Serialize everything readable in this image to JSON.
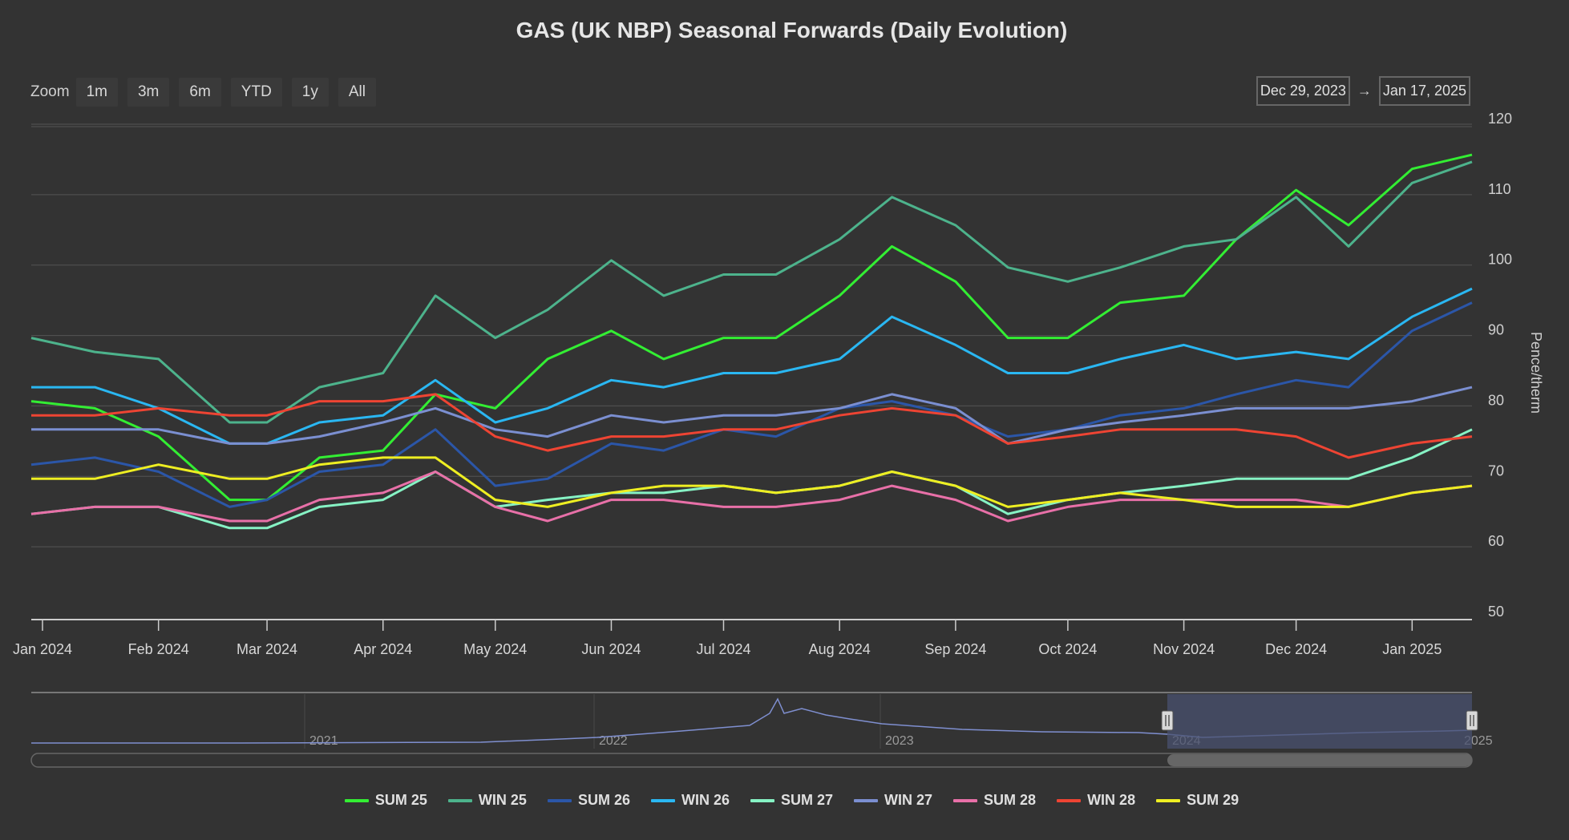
{
  "title": "GAS (UK NBP) Seasonal Forwards (Daily Evolution)",
  "zoom": {
    "label": "Zoom",
    "buttons": [
      "1m",
      "3m",
      "6m",
      "YTD",
      "1y",
      "All"
    ]
  },
  "range": {
    "from": "Dec 29, 2023",
    "arrow": "→",
    "to": "Jan 17, 2025"
  },
  "navigator": {
    "year_labels": [
      "2021",
      "2022",
      "2023",
      "2024",
      "2025"
    ]
  },
  "colors": {
    "background": "#333333",
    "grid": "#555555",
    "navigator_fill": "#4a5270",
    "navigator_line": "#7f8fd0"
  },
  "chart_data": {
    "type": "line",
    "title": "GAS (UK NBP) Seasonal Forwards (Daily Evolution)",
    "ylabel": "Pence/therm",
    "ylim": [
      50,
      120
    ],
    "y_ticks": [
      50,
      60,
      70,
      80,
      90,
      100,
      110,
      120
    ],
    "xlim": [
      "2023-12-29",
      "2025-01-17"
    ],
    "x_ticks": [
      {
        "date": "2024-01-01",
        "label": "Jan 2024"
      },
      {
        "date": "2024-02-01",
        "label": "Feb 2024"
      },
      {
        "date": "2024-03-01",
        "label": "Mar 2024"
      },
      {
        "date": "2024-04-01",
        "label": "Apr 2024"
      },
      {
        "date": "2024-05-01",
        "label": "May 2024"
      },
      {
        "date": "2024-06-01",
        "label": "Jun 2024"
      },
      {
        "date": "2024-07-01",
        "label": "Jul 2024"
      },
      {
        "date": "2024-08-01",
        "label": "Aug 2024"
      },
      {
        "date": "2024-09-01",
        "label": "Sep 2024"
      },
      {
        "date": "2024-10-01",
        "label": "Oct 2024"
      },
      {
        "date": "2024-11-01",
        "label": "Nov 2024"
      },
      {
        "date": "2024-12-01",
        "label": "Dec 2024"
      },
      {
        "date": "2025-01-01",
        "label": "Jan 2025"
      }
    ],
    "grid": true,
    "legend_position": "bottom",
    "x": [
      "2023-12-29",
      "2024-01-15",
      "2024-02-01",
      "2024-02-20",
      "2024-03-01",
      "2024-03-15",
      "2024-04-01",
      "2024-04-15",
      "2024-05-01",
      "2024-05-15",
      "2024-06-01",
      "2024-06-15",
      "2024-07-01",
      "2024-07-15",
      "2024-08-01",
      "2024-08-15",
      "2024-09-01",
      "2024-09-15",
      "2024-10-01",
      "2024-10-15",
      "2024-11-01",
      "2024-11-15",
      "2024-12-01",
      "2024-12-15",
      "2025-01-01",
      "2025-01-17"
    ],
    "series": [
      {
        "name": "SUM 25",
        "color": "#33ee33",
        "values": [
          81,
          80,
          76,
          67,
          67,
          73,
          74,
          82,
          80,
          87,
          91,
          87,
          90,
          90,
          96,
          103,
          98,
          90,
          90,
          95,
          96,
          104,
          111,
          106,
          114,
          116
        ]
      },
      {
        "name": "WIN 25",
        "color": "#4db38c",
        "values": [
          90,
          88,
          87,
          78,
          78,
          83,
          85,
          96,
          90,
          94,
          101,
          96,
          99,
          99,
          104,
          110,
          106,
          100,
          98,
          100,
          103,
          104,
          110,
          103,
          112,
          115
        ]
      },
      {
        "name": "SUM 26",
        "color": "#2b56a8",
        "values": [
          72,
          73,
          71,
          66,
          67,
          71,
          72,
          77,
          69,
          70,
          75,
          74,
          77,
          76,
          80,
          81,
          79,
          76,
          77,
          79,
          80,
          82,
          84,
          83,
          91,
          95
        ]
      },
      {
        "name": "WIN 26",
        "color": "#2ab7f2",
        "values": [
          83,
          83,
          80,
          75,
          75,
          78,
          79,
          84,
          78,
          80,
          84,
          83,
          85,
          85,
          87,
          93,
          89,
          85,
          85,
          87,
          89,
          87,
          88,
          87,
          93,
          97
        ]
      },
      {
        "name": "SUM 27",
        "color": "#86f2c4",
        "values": [
          65,
          66,
          66,
          63,
          63,
          66,
          67,
          71,
          66,
          67,
          68,
          68,
          69,
          68,
          69,
          71,
          69,
          65,
          67,
          68,
          69,
          70,
          70,
          70,
          73,
          77
        ]
      },
      {
        "name": "WIN 27",
        "color": "#7b8fd1",
        "values": [
          77,
          77,
          77,
          75,
          75,
          76,
          78,
          80,
          77,
          76,
          79,
          78,
          79,
          79,
          80,
          82,
          80,
          75,
          77,
          78,
          79,
          80,
          80,
          80,
          81,
          83
        ]
      },
      {
        "name": "SUM 28",
        "color": "#e870a8",
        "values": [
          65,
          66,
          66,
          64,
          64,
          67,
          68,
          71,
          66,
          64,
          67,
          67,
          66,
          66,
          67,
          69,
          67,
          64,
          66,
          67,
          67,
          67,
          67,
          66,
          68,
          69
        ]
      },
      {
        "name": "WIN 28",
        "color": "#ee4433",
        "values": [
          79,
          79,
          80,
          79,
          79,
          81,
          81,
          82,
          76,
          74,
          76,
          76,
          77,
          77,
          79,
          80,
          79,
          75,
          76,
          77,
          77,
          77,
          76,
          73,
          75,
          76
        ]
      },
      {
        "name": "SUM 29",
        "color": "#eeee22",
        "values": [
          70,
          70,
          72,
          70,
          70,
          72,
          73,
          73,
          67,
          66,
          68,
          69,
          69,
          68,
          69,
          71,
          69,
          66,
          67,
          68,
          67,
          66,
          66,
          66,
          68,
          69
        ]
      }
    ]
  }
}
